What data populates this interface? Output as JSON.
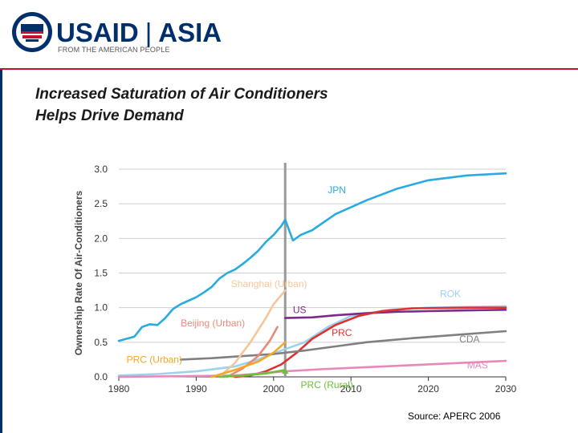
{
  "header": {
    "brand_usaid": "USAID",
    "brand_separator": "|",
    "brand_region": "ASIA",
    "tagline": "FROM THE AMERICAN PEOPLE",
    "brand_color": "#002f6c",
    "accent_color": "#c8102e"
  },
  "slide": {
    "title_line1": "Increased Saturation of Air Conditioners",
    "title_line2": "Helps Drive Demand",
    "source": "Source: APERC 2006"
  },
  "chart_data": {
    "type": "line",
    "title": "",
    "xlabel": "",
    "ylabel": "Ownership Rate Of Air-Conditioners",
    "xlim": [
      1980,
      2030
    ],
    "ylim": [
      0,
      3.0
    ],
    "x_ticks": [
      1980,
      1990,
      2000,
      2010,
      2020,
      2030
    ],
    "y_ticks": [
      "0.0",
      "0.5",
      "1.0",
      "1.5",
      "2.0",
      "2.5",
      "3.0"
    ],
    "grid": true,
    "divider_x": 2001.5,
    "series": [
      {
        "name": "JPN",
        "color": "#29abe2",
        "label_at": [
          2007,
          2.65
        ],
        "points": [
          [
            1980,
            0.52
          ],
          [
            1981,
            0.55
          ],
          [
            1982,
            0.58
          ],
          [
            1983,
            0.72
          ],
          [
            1984,
            0.76
          ],
          [
            1985,
            0.75
          ],
          [
            1986,
            0.85
          ],
          [
            1987,
            0.98
          ],
          [
            1988,
            1.05
          ],
          [
            1989,
            1.1
          ],
          [
            1990,
            1.15
          ],
          [
            1991,
            1.22
          ],
          [
            1992,
            1.3
          ],
          [
            1993,
            1.42
          ],
          [
            1994,
            1.5
          ],
          [
            1995,
            1.55
          ],
          [
            1996,
            1.63
          ],
          [
            1997,
            1.72
          ],
          [
            1998,
            1.82
          ],
          [
            1999,
            1.95
          ],
          [
            2000,
            2.05
          ],
          [
            2001,
            2.18
          ],
          [
            2001.5,
            2.27
          ],
          [
            2002.5,
            1.97
          ],
          [
            2003.5,
            2.05
          ],
          [
            2005,
            2.12
          ],
          [
            2008,
            2.35
          ],
          [
            2012,
            2.55
          ],
          [
            2016,
            2.72
          ],
          [
            2020,
            2.84
          ],
          [
            2025,
            2.91
          ],
          [
            2030,
            2.94
          ]
        ]
      },
      {
        "name": "ROK",
        "color": "#9ad3f0",
        "label_at": [
          2021.5,
          1.15
        ],
        "points": [
          [
            1980,
            0.02
          ],
          [
            1985,
            0.04
          ],
          [
            1990,
            0.08
          ],
          [
            1995,
            0.15
          ],
          [
            1998,
            0.25
          ],
          [
            2001,
            0.38
          ],
          [
            2004,
            0.5
          ],
          [
            2007,
            0.72
          ],
          [
            2010,
            0.88
          ],
          [
            2015,
            0.97
          ],
          [
            2020,
            1.0
          ],
          [
            2030,
            1.02
          ]
        ]
      },
      {
        "name": "US",
        "color": "#7b2c87",
        "label_at": [
          2002.5,
          0.92
        ],
        "points": [
          [
            2001.5,
            0.85
          ],
          [
            2005,
            0.86
          ],
          [
            2008,
            0.89
          ],
          [
            2012,
            0.92
          ],
          [
            2016,
            0.94
          ],
          [
            2020,
            0.95
          ],
          [
            2025,
            0.96
          ],
          [
            2030,
            0.97
          ]
        ]
      },
      {
        "name": "PRC",
        "color": "#e03131",
        "label_at": [
          2007.5,
          0.59
        ],
        "points": [
          [
            1995,
            0.0
          ],
          [
            1997,
            0.02
          ],
          [
            1999,
            0.08
          ],
          [
            2001,
            0.18
          ],
          [
            2003,
            0.35
          ],
          [
            2005,
            0.55
          ],
          [
            2008,
            0.75
          ],
          [
            2011,
            0.88
          ],
          [
            2014,
            0.95
          ],
          [
            2018,
            0.99
          ],
          [
            2025,
            1.0
          ],
          [
            2030,
            1.0
          ]
        ]
      },
      {
        "name": "CDA",
        "color": "#808080",
        "label_at": [
          2024,
          0.5
        ],
        "points": [
          [
            1988,
            0.25
          ],
          [
            1992,
            0.27
          ],
          [
            1996,
            0.3
          ],
          [
            2000,
            0.33
          ],
          [
            2004,
            0.38
          ],
          [
            2008,
            0.44
          ],
          [
            2012,
            0.5
          ],
          [
            2018,
            0.56
          ],
          [
            2024,
            0.61
          ],
          [
            2030,
            0.66
          ]
        ]
      },
      {
        "name": "MAS",
        "color": "#e987b9",
        "label_at": [
          2025,
          0.12
        ],
        "points": [
          [
            1980,
            0.0
          ],
          [
            1995,
            0.02
          ],
          [
            2001.5,
            0.08
          ],
          [
            2006,
            0.11
          ],
          [
            2012,
            0.14
          ],
          [
            2018,
            0.17
          ],
          [
            2024,
            0.2
          ],
          [
            2030,
            0.23
          ]
        ]
      },
      {
        "name": "Shanghai (Urban)",
        "color": "#f7c59a",
        "label_at": [
          1994.5,
          1.3
        ],
        "points": [
          [
            1993,
            0.0
          ],
          [
            1995,
            0.2
          ],
          [
            1997,
            0.5
          ],
          [
            1999,
            0.85
          ],
          [
            2000,
            1.05
          ],
          [
            2001,
            1.18
          ],
          [
            2001.5,
            1.25
          ]
        ]
      },
      {
        "name": "Beijing (Urban)",
        "color": "#e88a7a",
        "label_at": [
          1988,
          0.73
        ],
        "points": [
          [
            1994,
            0.0
          ],
          [
            1996,
            0.12
          ],
          [
            1998,
            0.3
          ],
          [
            1999.5,
            0.52
          ],
          [
            2000.5,
            0.72
          ]
        ]
      },
      {
        "name": "PRC (Urban)",
        "color": "#f5a623",
        "label_at": [
          1981,
          0.2
        ],
        "points": [
          [
            1992,
            0.0
          ],
          [
            1995,
            0.1
          ],
          [
            1998,
            0.22
          ],
          [
            2000,
            0.35
          ],
          [
            2001.5,
            0.5
          ]
        ]
      },
      {
        "name": "PRC (Rural)",
        "color": "#6bbf3a",
        "label_at": [
          2003.5,
          -0.16
        ],
        "points": [
          [
            1993,
            0.0
          ],
          [
            1996,
            0.02
          ],
          [
            1999,
            0.05
          ],
          [
            2001.5,
            0.1
          ]
        ]
      }
    ]
  }
}
